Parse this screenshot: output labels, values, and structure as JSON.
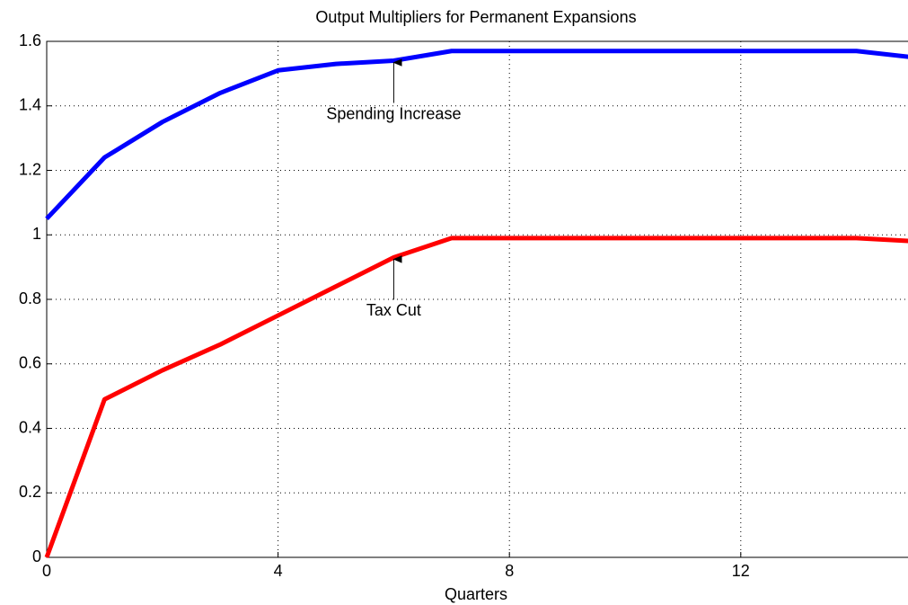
{
  "chart_data": {
    "type": "line",
    "title": "Output Multipliers for Permanent Expansions",
    "x_label": "Quarters",
    "x": [
      0,
      1,
      2,
      3,
      4,
      5,
      6,
      7,
      8,
      9,
      10,
      11,
      12,
      13,
      14,
      15
    ],
    "series": [
      {
        "name": "Spending Increase",
        "color": "#0000ff",
        "values": [
          1.05,
          1.24,
          1.35,
          1.44,
          1.51,
          1.53,
          1.54,
          1.57,
          1.57,
          1.57,
          1.57,
          1.57,
          1.57,
          1.57,
          1.57,
          1.55
        ]
      },
      {
        "name": "Tax Cut",
        "color": "#ff0000",
        "values": [
          0,
          0.49,
          0.58,
          0.66,
          0.75,
          0.84,
          0.93,
          0.99,
          0.99,
          0.99,
          0.99,
          0.99,
          0.99,
          0.99,
          0.99,
          0.98
        ]
      }
    ],
    "xlim": [
      0,
      15
    ],
    "xticks": [
      0,
      4,
      8,
      12
    ],
    "ylim": [
      0,
      1.6
    ],
    "yticks": [
      0,
      0.2,
      0.4,
      0.6,
      0.8,
      1,
      1.2,
      1.4,
      1.6
    ],
    "grid": true
  }
}
